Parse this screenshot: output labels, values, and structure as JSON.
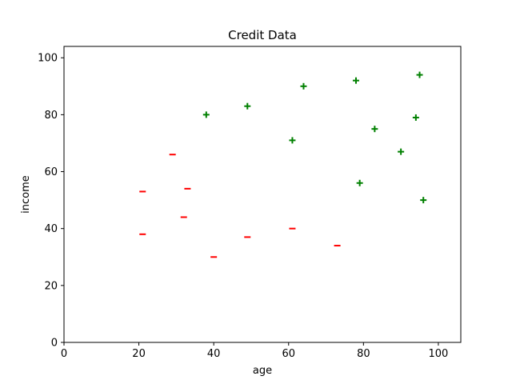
{
  "chart_data": {
    "type": "scatter",
    "title": "Credit Data",
    "xlabel": "age",
    "ylabel": "income",
    "xlim": [
      0,
      106
    ],
    "ylim": [
      0,
      104
    ],
    "xticks": [
      0,
      20,
      40,
      60,
      80,
      100
    ],
    "yticks": [
      0,
      20,
      40,
      60,
      80,
      100
    ],
    "grid": false,
    "legend": "none",
    "series": [
      {
        "marker": "+",
        "color": "#008000",
        "points": [
          {
            "x": 38,
            "y": 80
          },
          {
            "x": 49,
            "y": 83
          },
          {
            "x": 61,
            "y": 71
          },
          {
            "x": 64,
            "y": 90
          },
          {
            "x": 78,
            "y": 92
          },
          {
            "x": 79,
            "y": 56
          },
          {
            "x": 83,
            "y": 75
          },
          {
            "x": 90,
            "y": 67
          },
          {
            "x": 94,
            "y": 79
          },
          {
            "x": 95,
            "y": 94
          },
          {
            "x": 96,
            "y": 50
          }
        ]
      },
      {
        "marker": "-",
        "color": "#ff0000",
        "points": [
          {
            "x": 21,
            "y": 53
          },
          {
            "x": 21,
            "y": 38
          },
          {
            "x": 29,
            "y": 66
          },
          {
            "x": 32,
            "y": 44
          },
          {
            "x": 33,
            "y": 54
          },
          {
            "x": 40,
            "y": 30
          },
          {
            "x": 49,
            "y": 37
          },
          {
            "x": 61,
            "y": 40
          },
          {
            "x": 73,
            "y": 34
          }
        ]
      }
    ]
  }
}
